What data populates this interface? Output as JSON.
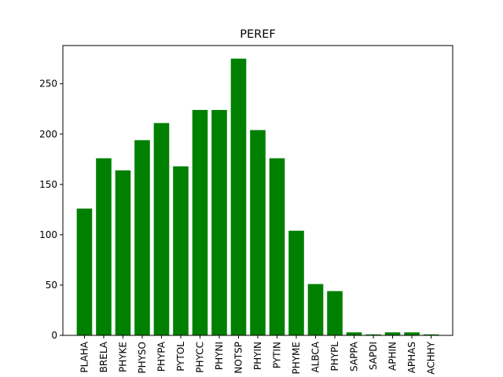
{
  "chart_data": {
    "type": "bar",
    "title": "PEREF",
    "xlabel": "",
    "ylabel": "",
    "bar_color": "#008000",
    "categories": [
      "PLAHA",
      "BRELA",
      "PHYKE",
      "PHYSO",
      "PHYPA",
      "PYTOL",
      "PHYCC",
      "PHYNI",
      "NOTSP",
      "PHYIN",
      "PYTIN",
      "PHYME",
      "ALBCA",
      "PHYPL",
      "SAPPA",
      "SAPDI",
      "APHIN",
      "APHAS",
      "ACHHY"
    ],
    "values": [
      126,
      176,
      164,
      194,
      211,
      168,
      224,
      224,
      275,
      204,
      176,
      104,
      51,
      44,
      3,
      1,
      3,
      3,
      1
    ],
    "ylim": [
      0,
      288
    ],
    "yticks": [
      0,
      50,
      100,
      150,
      200,
      250
    ],
    "grid": false,
    "legend": "none"
  }
}
